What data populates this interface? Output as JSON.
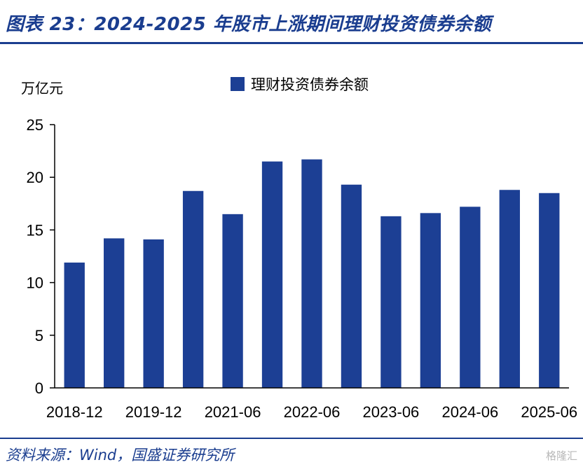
{
  "header": {
    "title": "图表 23：2024-2025 年股市上涨期间理财投资债券余额"
  },
  "chart_data": {
    "type": "bar",
    "ylabel": "万亿元",
    "ylim": [
      0,
      25
    ],
    "yticks": [
      0,
      5,
      10,
      15,
      20,
      25
    ],
    "x_tick_labels": [
      "2018-12",
      "2019-12",
      "2021-06",
      "2022-06",
      "2023-06",
      "2024-06",
      "2025-06"
    ],
    "series": [
      {
        "name": "理财投资债券余额",
        "color": "#1c3f94",
        "values": [
          11.9,
          14.2,
          14.1,
          18.7,
          16.5,
          21.5,
          21.7,
          19.3,
          16.3,
          16.6,
          17.2,
          18.8,
          18.5
        ]
      }
    ],
    "legend_position": "top-center",
    "grid": false
  },
  "footer": {
    "source": "资料来源：Wind，国盛证券研究所",
    "watermark": "格隆汇"
  }
}
